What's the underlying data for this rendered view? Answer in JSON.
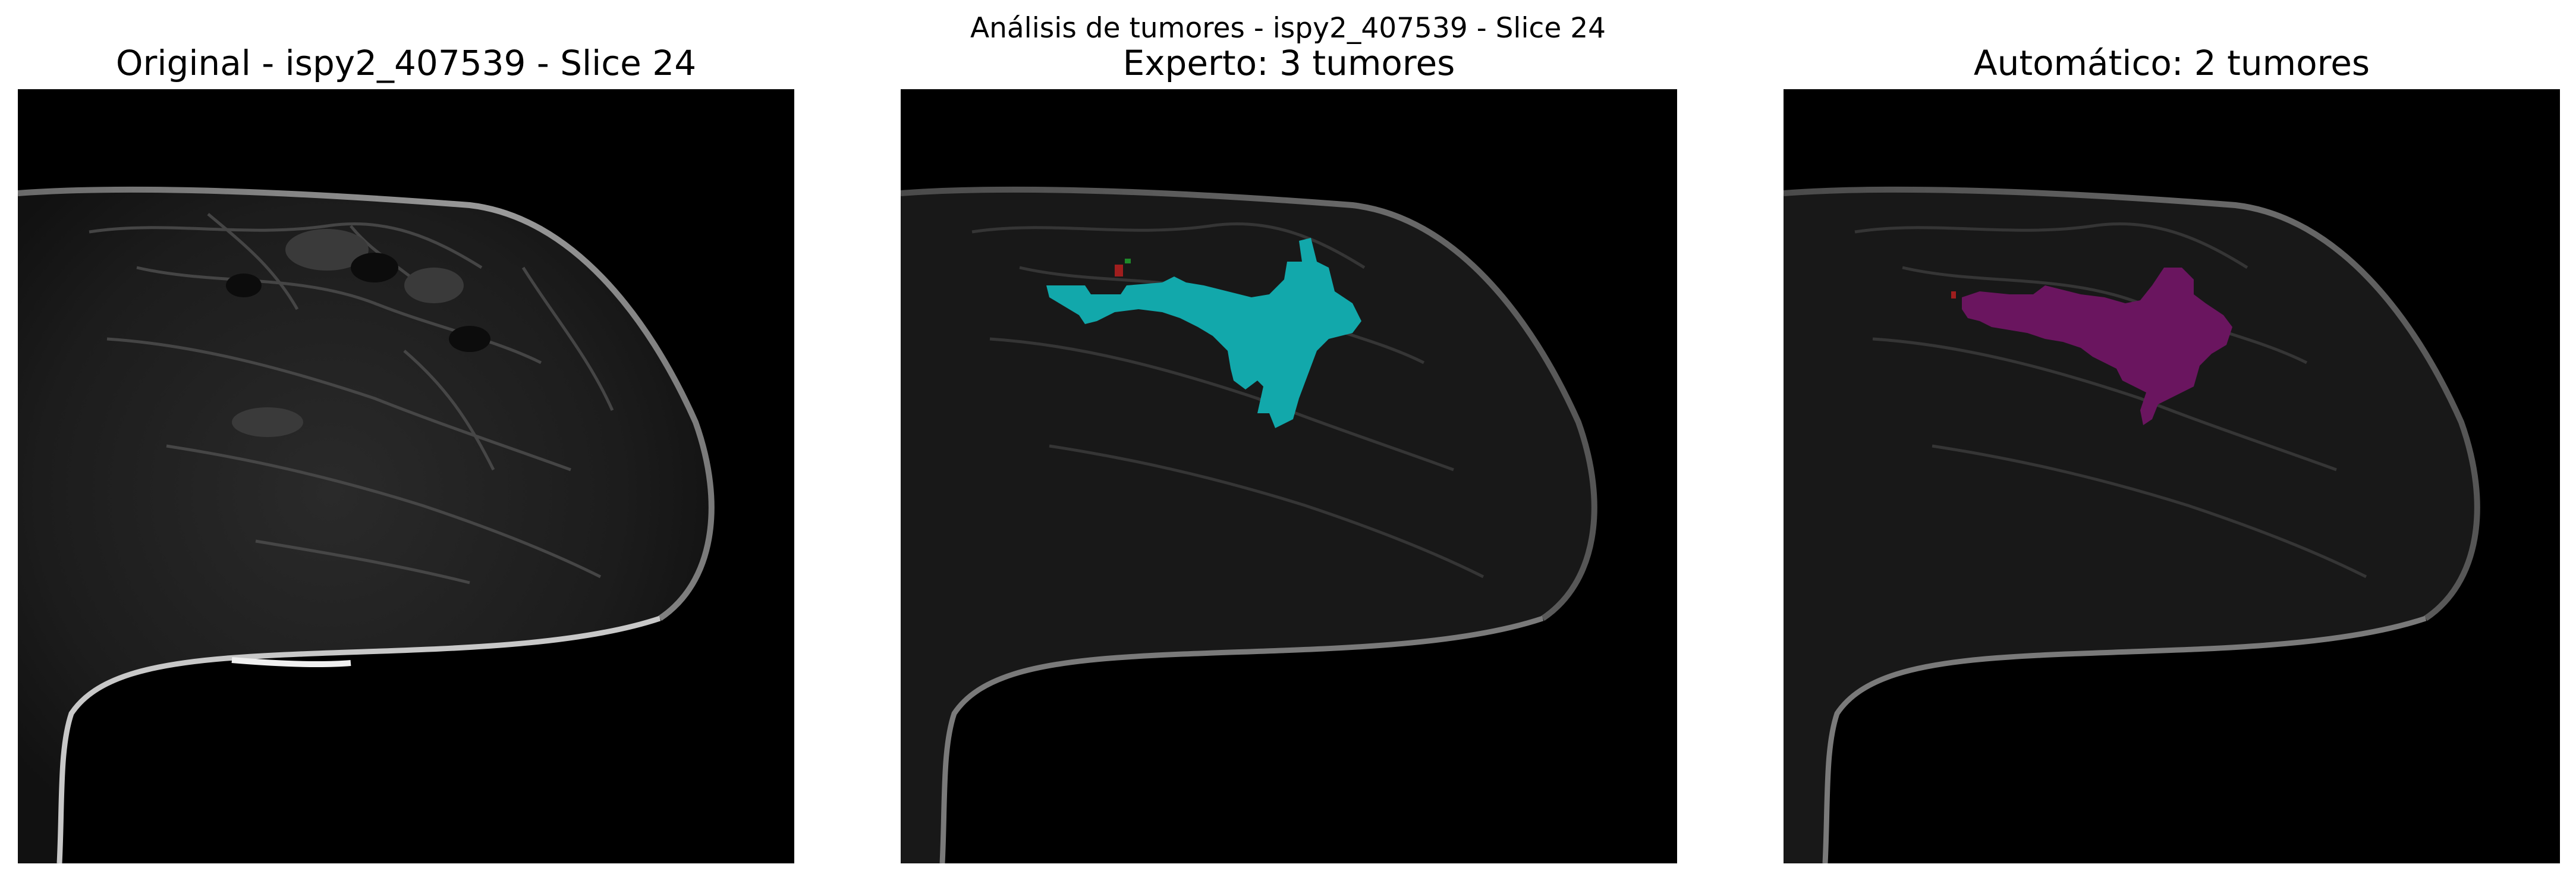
{
  "figure": {
    "suptitle": "Análisis de tumores - ispy2_407539 - Slice 24"
  },
  "panels": [
    {
      "title": "Original - ispy2_407539 - Slice 24",
      "overlay": "none"
    },
    {
      "title": "Experto: 3 tumores",
      "overlay": "expert-segmentation",
      "colors": {
        "main": "#12a8ab",
        "small_1": "#a01e1e",
        "small_2": "#1e8a2a"
      }
    },
    {
      "title": "Automático: 2 tumores",
      "overlay": "automatic-segmentation",
      "colors": {
        "main": "#6a155f",
        "small_1": "#a01e1e"
      }
    }
  ]
}
